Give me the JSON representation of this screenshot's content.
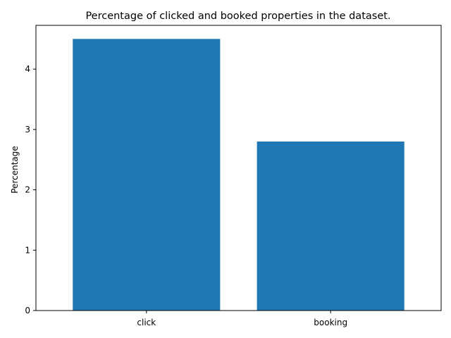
{
  "chart_data": {
    "type": "bar",
    "title": "Percentage of clicked and booked properties in the dataset.",
    "xlabel": "",
    "ylabel": "Percentage",
    "categories": [
      "click",
      "booking"
    ],
    "values": [
      4.5,
      2.8
    ],
    "ylim": [
      0,
      4.725
    ],
    "yticks": [
      0,
      1,
      2,
      3,
      4
    ],
    "grid": false,
    "bar_color": "#1f77b4"
  }
}
